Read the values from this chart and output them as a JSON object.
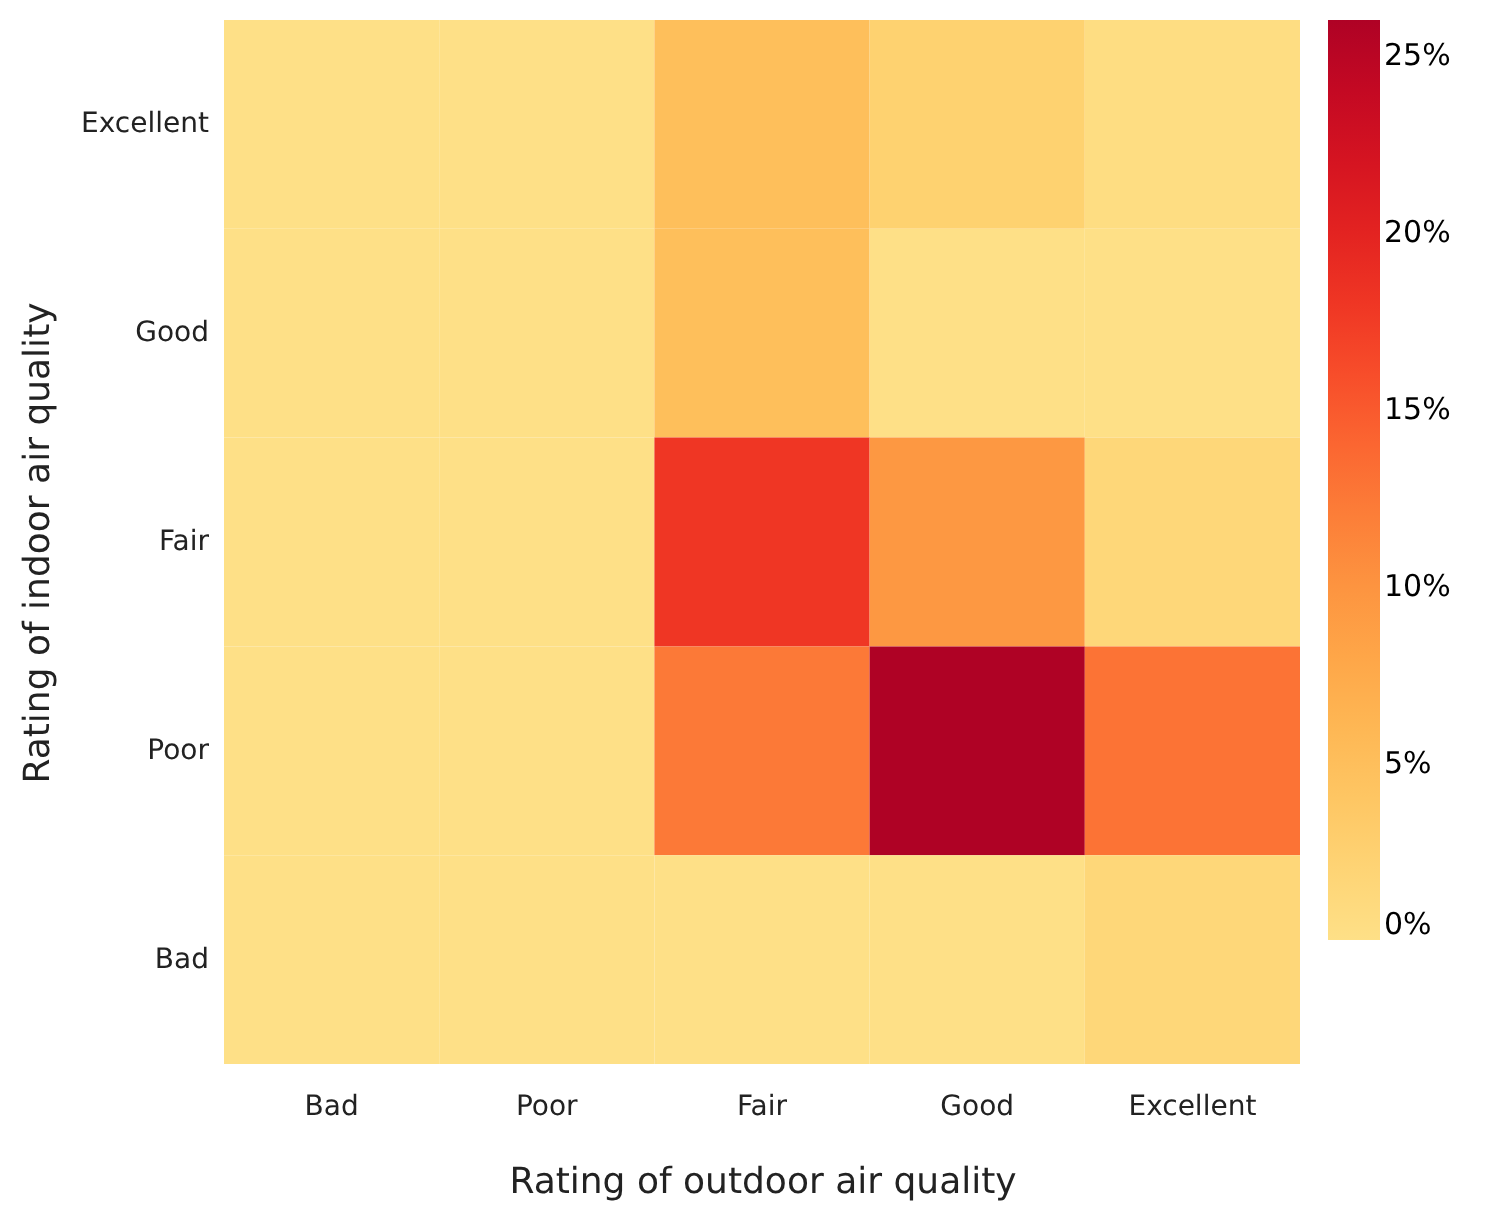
{
  "chart_data": {
    "type": "heatmap",
    "xlabel": "Rating of outdoor air quality",
    "ylabel": "Rating of indoor air quality",
    "categories": [
      "Bad",
      "Poor",
      "Fair",
      "Good",
      "Excellent"
    ],
    "y_categories": [
      "Excellent",
      "Good",
      "Fair",
      "Poor",
      "Bad"
    ],
    "cells": [
      [
        0,
        0,
        5,
        2.5,
        0.5
      ],
      [
        0,
        0,
        5,
        0,
        0
      ],
      [
        0,
        0,
        18,
        9.5,
        1.5
      ],
      [
        0,
        0,
        12.5,
        26,
        13
      ],
      [
        0,
        0,
        0,
        0,
        1.5
      ]
    ],
    "clim": [
      0,
      26
    ],
    "cticks": [
      {
        "value": 0,
        "label": "0%"
      },
      {
        "value": 5,
        "label": "5%"
      },
      {
        "value": 10,
        "label": "10%"
      },
      {
        "value": 15,
        "label": "15%"
      },
      {
        "value": 20,
        "label": "20%"
      },
      {
        "value": 25,
        "label": "25%"
      }
    ]
  }
}
